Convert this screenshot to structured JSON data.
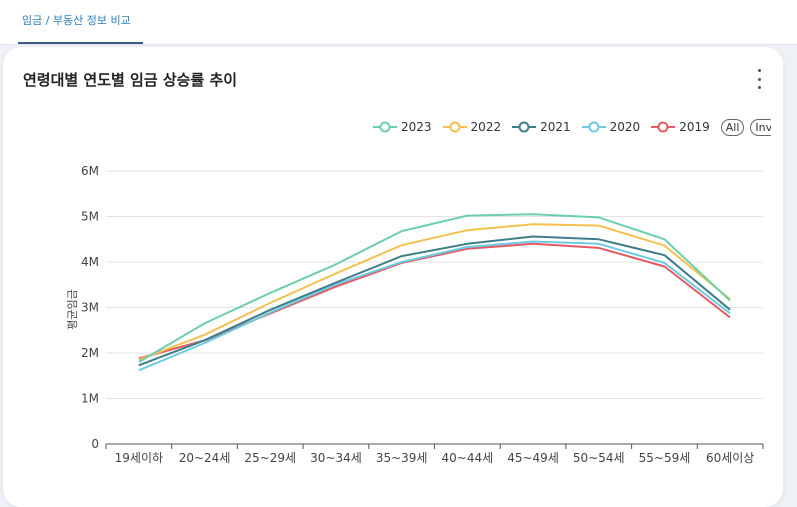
{
  "header": {
    "active_tab": "임금 / 부동산 정보 비교"
  },
  "card": {
    "title": "연령대별 연도별 임금 상승률 추이"
  },
  "legend": {
    "all_label": "All",
    "invert_label": "Inv"
  },
  "colors": {
    "2023": "#6dcfaa",
    "2022": "#f4c04f",
    "2021": "#3f7d88",
    "2020": "#6ccbe3",
    "2019": "#e35a63"
  },
  "chart_data": {
    "type": "line",
    "title": "연령대별 연도별 임금 상승률 추이",
    "xlabel": "",
    "ylabel": "평균임금",
    "ylim": [
      0,
      6000000
    ],
    "yticks": [
      0,
      1000000,
      2000000,
      3000000,
      4000000,
      5000000,
      6000000
    ],
    "ytick_labels": [
      "0",
      "1M",
      "2M",
      "3M",
      "4M",
      "5M",
      "6M"
    ],
    "categories": [
      "19세이하",
      "20~24세",
      "25~29세",
      "30~34세",
      "35~39세",
      "40~44세",
      "45~49세",
      "50~54세",
      "55~59세",
      "60세이상"
    ],
    "grid": true,
    "legend_position": "top-right",
    "series": [
      {
        "name": "2023",
        "values": [
          1800000,
          2650000,
          3320000,
          3950000,
          4680000,
          5020000,
          5050000,
          4980000,
          4500000,
          3150000
        ]
      },
      {
        "name": "2022",
        "values": [
          1850000,
          2400000,
          3100000,
          3750000,
          4370000,
          4700000,
          4830000,
          4800000,
          4360000,
          3180000
        ]
      },
      {
        "name": "2021",
        "values": [
          1730000,
          2280000,
          2950000,
          3550000,
          4130000,
          4400000,
          4560000,
          4500000,
          4150000,
          2950000
        ]
      },
      {
        "name": "2020",
        "values": [
          1620000,
          2220000,
          2890000,
          3510000,
          4000000,
          4330000,
          4450000,
          4400000,
          3980000,
          2870000
        ]
      },
      {
        "name": "2019",
        "values": [
          1880000,
          2280000,
          2870000,
          3460000,
          3980000,
          4290000,
          4400000,
          4310000,
          3900000,
          2780000
        ]
      }
    ]
  }
}
